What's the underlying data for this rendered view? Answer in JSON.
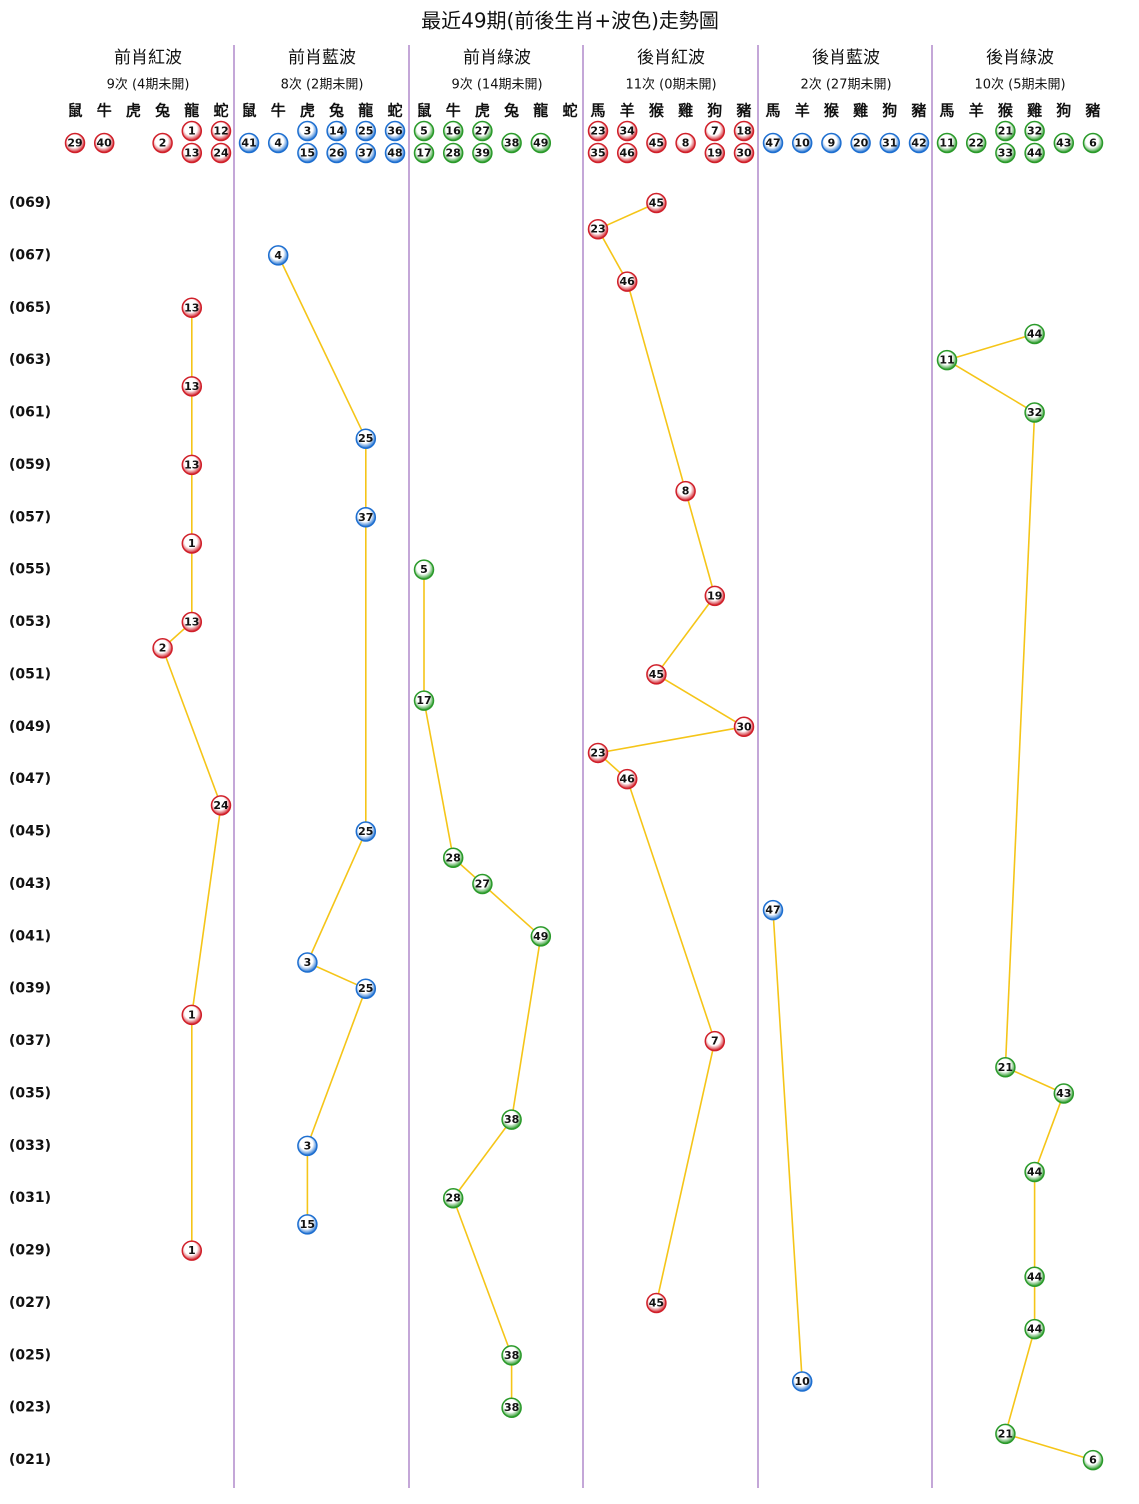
{
  "title": "最近49期(前後生肖+波色)走勢圖",
  "periods": [
    "(069)",
    null,
    "(067)",
    null,
    "(065)",
    null,
    "(063)",
    null,
    "(061)",
    null,
    "(059)",
    null,
    "(057)",
    null,
    "(055)",
    null,
    "(053)",
    null,
    "(051)",
    null,
    "(049)",
    null,
    "(047)",
    null,
    "(045)",
    null,
    "(043)",
    null,
    "(041)",
    null,
    "(039)",
    null,
    "(037)",
    null,
    "(035)",
    null,
    "(033)",
    null,
    "(031)",
    null,
    "(029)",
    null,
    "(027)",
    null,
    "(025)",
    null,
    "(023)",
    null,
    "(021)"
  ],
  "groups": [
    {
      "name": "前肖紅波",
      "summary": "9次 (4期未開)",
      "color": "#d0202a",
      "zodiacs": [
        "鼠",
        "牛",
        "虎",
        "兔",
        "龍",
        "蛇"
      ],
      "zodiac_numbers": [
        [
          29
        ],
        [
          40
        ],
        [],
        [
          2
        ],
        [
          1,
          13
        ],
        [
          12,
          24
        ]
      ],
      "draws": [
        null,
        null,
        null,
        null,
        13,
        null,
        null,
        13,
        null,
        null,
        13,
        null,
        null,
        1,
        null,
        null,
        13,
        2,
        null,
        null,
        null,
        null,
        null,
        24,
        null,
        null,
        null,
        null,
        null,
        null,
        null,
        1,
        null,
        null,
        null,
        null,
        null,
        null,
        null,
        null,
        1,
        null,
        null,
        null,
        null,
        null,
        null,
        null,
        null
      ]
    },
    {
      "name": "前肖藍波",
      "summary": "8次 (2期未開)",
      "color": "#1e6fd0",
      "zodiacs": [
        "鼠",
        "牛",
        "虎",
        "兔",
        "龍",
        "蛇"
      ],
      "zodiac_numbers": [
        [
          41
        ],
        [
          4
        ],
        [
          3,
          15
        ],
        [
          14,
          26
        ],
        [
          25,
          37
        ],
        [
          36,
          48
        ]
      ],
      "draws": [
        null,
        null,
        4,
        null,
        null,
        null,
        null,
        null,
        null,
        25,
        null,
        null,
        37,
        null,
        null,
        null,
        null,
        null,
        null,
        null,
        null,
        null,
        null,
        null,
        25,
        null,
        null,
        null,
        null,
        3,
        25,
        null,
        null,
        null,
        null,
        null,
        3,
        null,
        null,
        15,
        null,
        null,
        null,
        null,
        null,
        null,
        null,
        null,
        null
      ]
    },
    {
      "name": "前肖綠波",
      "summary": "9次 (14期未開)",
      "color": "#2a9a2a",
      "zodiacs": [
        "鼠",
        "牛",
        "虎",
        "兔",
        "龍",
        "蛇"
      ],
      "zodiac_numbers": [
        [
          5,
          17
        ],
        [
          16,
          28
        ],
        [
          27,
          39
        ],
        [
          38
        ],
        [
          49
        ],
        []
      ],
      "draws": [
        null,
        null,
        null,
        null,
        null,
        null,
        null,
        null,
        null,
        null,
        null,
        null,
        null,
        null,
        5,
        null,
        null,
        null,
        null,
        17,
        null,
        null,
        null,
        null,
        null,
        28,
        27,
        null,
        49,
        null,
        null,
        null,
        null,
        null,
        null,
        38,
        null,
        null,
        28,
        null,
        null,
        null,
        null,
        null,
        38,
        null,
        38,
        null,
        null
      ]
    },
    {
      "name": "後肖紅波",
      "summary": "11次 (0期未開)",
      "color": "#d0202a",
      "zodiacs": [
        "馬",
        "羊",
        "猴",
        "雞",
        "狗",
        "豬"
      ],
      "zodiac_numbers": [
        [
          23,
          35
        ],
        [
          34,
          46
        ],
        [
          45
        ],
        [
          8
        ],
        [
          7,
          19
        ],
        [
          18,
          30
        ]
      ],
      "draws": [
        45,
        23,
        null,
        46,
        null,
        null,
        null,
        null,
        null,
        null,
        null,
        8,
        null,
        null,
        null,
        19,
        null,
        null,
        45,
        null,
        30,
        23,
        46,
        null,
        null,
        null,
        null,
        null,
        null,
        null,
        null,
        null,
        7,
        null,
        null,
        null,
        null,
        null,
        null,
        null,
        null,
        null,
        45,
        null,
        null,
        null,
        null,
        null,
        null
      ]
    },
    {
      "name": "後肖藍波",
      "summary": "2次 (27期未開)",
      "color": "#1e6fd0",
      "zodiacs": [
        "馬",
        "羊",
        "猴",
        "雞",
        "狗",
        "豬"
      ],
      "zodiac_numbers": [
        [
          47
        ],
        [
          10
        ],
        [
          9
        ],
        [
          20
        ],
        [
          31
        ],
        [
          42
        ]
      ],
      "draws": [
        null,
        null,
        null,
        null,
        null,
        null,
        null,
        null,
        null,
        null,
        null,
        null,
        null,
        null,
        null,
        null,
        null,
        null,
        null,
        null,
        null,
        null,
        null,
        null,
        null,
        null,
        null,
        47,
        null,
        null,
        null,
        null,
        null,
        null,
        null,
        null,
        null,
        null,
        null,
        null,
        null,
        null,
        null,
        null,
        null,
        10,
        null,
        null,
        null
      ]
    },
    {
      "name": "後肖綠波",
      "summary": "10次 (5期未開)",
      "color": "#2a9a2a",
      "zodiacs": [
        "馬",
        "羊",
        "猴",
        "雞",
        "狗",
        "豬"
      ],
      "zodiac_numbers": [
        [
          11
        ],
        [
          22
        ],
        [
          21,
          33
        ],
        [
          32,
          44
        ],
        [
          43
        ],
        [
          6
        ]
      ],
      "draws": [
        null,
        null,
        null,
        null,
        null,
        44,
        11,
        null,
        32,
        null,
        null,
        null,
        null,
        null,
        null,
        null,
        null,
        null,
        null,
        null,
        null,
        null,
        null,
        null,
        null,
        null,
        null,
        null,
        null,
        null,
        null,
        null,
        null,
        21,
        43,
        null,
        null,
        44,
        null,
        null,
        null,
        44,
        null,
        44,
        null,
        null,
        null,
        21,
        6
      ]
    }
  ]
}
